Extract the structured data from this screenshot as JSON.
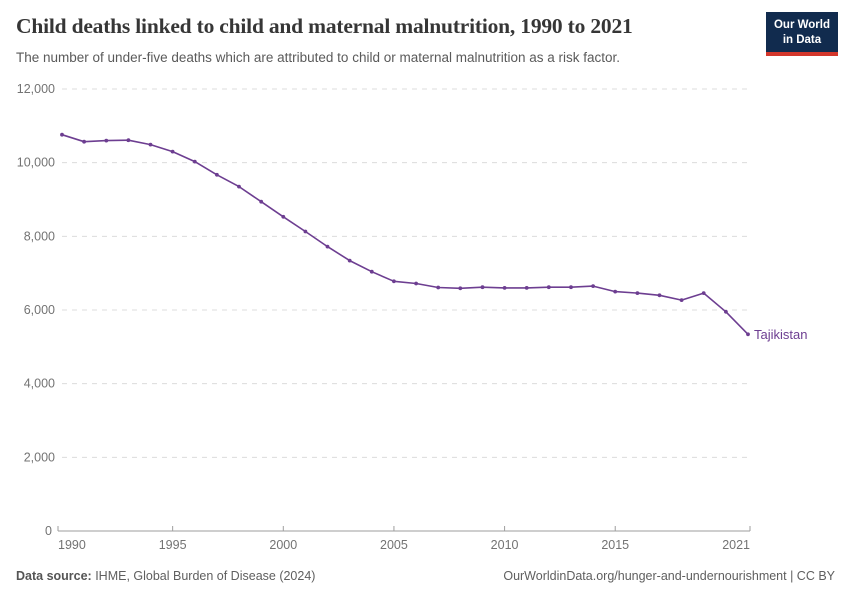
{
  "header": {
    "title": "Child deaths linked to child and maternal malnutrition, 1990 to 2021",
    "subtitle": "The number of under-five deaths which are attributed to child or maternal malnutrition as a risk factor.",
    "logo": {
      "line1": "Our World",
      "line2": "in Data",
      "bg_color": "#112b4e",
      "accent_color": "#d3362b"
    }
  },
  "chart_data": {
    "type": "line",
    "title": "Child deaths linked to child and maternal malnutrition, 1990 to 2021",
    "x": [
      1990,
      1991,
      1992,
      1993,
      1994,
      1995,
      1996,
      1997,
      1998,
      1999,
      2000,
      2001,
      2002,
      2003,
      2004,
      2005,
      2006,
      2007,
      2008,
      2009,
      2010,
      2011,
      2012,
      2013,
      2014,
      2015,
      2016,
      2017,
      2018,
      2019,
      2020,
      2021
    ],
    "series": [
      {
        "name": "Tajikistan",
        "color": "#6d3e91",
        "values": [
          10760,
          10570,
          10600,
          10610,
          10490,
          10300,
          10030,
          9670,
          9350,
          8940,
          8530,
          8130,
          7720,
          7340,
          7040,
          6780,
          6720,
          6610,
          6590,
          6620,
          6600,
          6600,
          6620,
          6620,
          6650,
          6500,
          6460,
          6400,
          6270,
          6460,
          5950,
          5340
        ]
      }
    ],
    "xlabel": "",
    "ylabel": "",
    "xlim": [
      1990,
      2021
    ],
    "ylim": [
      0,
      12000
    ],
    "xticks": [
      1990,
      1995,
      2000,
      2005,
      2010,
      2015,
      2021
    ],
    "yticks": [
      0,
      2000,
      4000,
      6000,
      8000,
      10000,
      12000
    ],
    "grid": "horizontal-dashed",
    "legend_position": "end-of-line-label",
    "end_label": "Tajikistan",
    "colors": {
      "grid": "#dcdcdc",
      "axis": "#9e9e9e",
      "tick_text": "#737373"
    }
  },
  "footer": {
    "source_label": "Data source:",
    "source_text": "IHME, Global Burden of Disease (2024)",
    "link_text": "OurWorldinData.org/hunger-and-undernourishment | CC BY"
  }
}
